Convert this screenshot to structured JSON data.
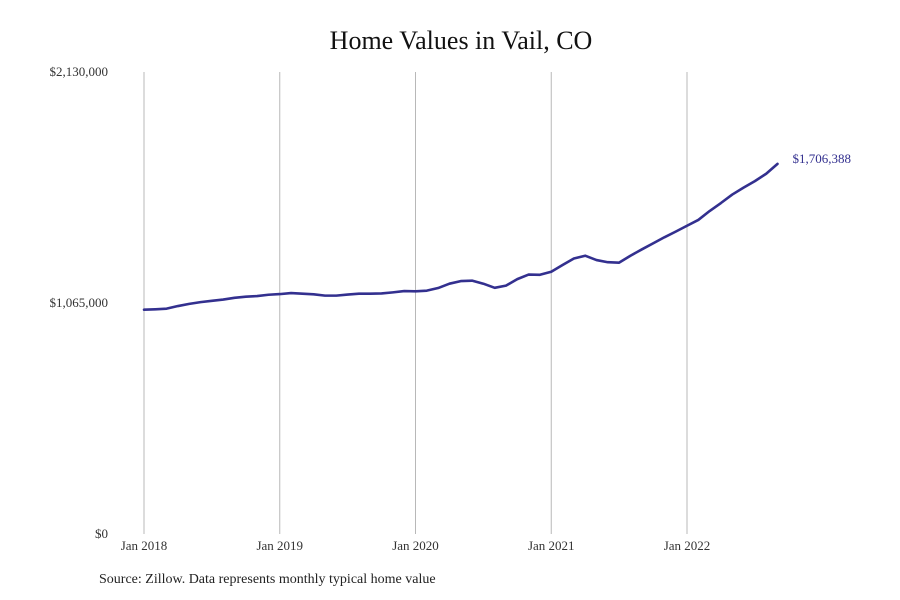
{
  "chart_data": {
    "type": "line",
    "title": "Home Values in Vail, CO",
    "xlabel": "",
    "ylabel": "",
    "source": "Source: Zillow. Data represents monthly typical home value",
    "ylim": [
      0,
      2130000
    ],
    "y_ticks": [
      0,
      1065000,
      2130000
    ],
    "y_tick_labels": [
      "$0",
      "$1,065,000",
      "$2,130,000"
    ],
    "x_tick_labels": [
      "Jan 2018",
      "Jan 2019",
      "Jan 2020",
      "Jan 2021",
      "Jan 2022"
    ],
    "x_tick_dates": [
      "2018-01",
      "2019-01",
      "2020-01",
      "2021-01",
      "2022-01"
    ],
    "x_grid": true,
    "line_color": "#33308f",
    "end_label": "$1,706,388",
    "series": [
      {
        "x": [
          "2018-01",
          "2018-02",
          "2018-03",
          "2018-04",
          "2018-05",
          "2018-06",
          "2018-07",
          "2018-08",
          "2018-09",
          "2018-10",
          "2018-11",
          "2018-12",
          "2019-01",
          "2019-02",
          "2019-03",
          "2019-04",
          "2019-05",
          "2019-06",
          "2019-07",
          "2019-08",
          "2019-09",
          "2019-10",
          "2019-11",
          "2019-12",
          "2020-01",
          "2020-02",
          "2020-03",
          "2020-04",
          "2020-05",
          "2020-06",
          "2020-07",
          "2020-08",
          "2020-09",
          "2020-10",
          "2020-11",
          "2020-12",
          "2021-01",
          "2021-02",
          "2021-03",
          "2021-04",
          "2021-05",
          "2021-06",
          "2021-07",
          "2021-08",
          "2021-09",
          "2021-10",
          "2021-11",
          "2021-12",
          "2022-01",
          "2022-02",
          "2022-03",
          "2022-04",
          "2022-05",
          "2022-06",
          "2022-07",
          "2022-08",
          "2022-09"
        ],
        "values": [
          1034000,
          1036000,
          1039000,
          1051000,
          1061000,
          1069000,
          1075000,
          1081000,
          1089000,
          1094000,
          1097000,
          1103000,
          1106000,
          1111000,
          1108000,
          1105000,
          1099000,
          1099000,
          1104000,
          1108000,
          1108000,
          1109000,
          1114000,
          1120000,
          1119000,
          1122000,
          1134000,
          1154000,
          1166000,
          1168000,
          1154000,
          1135000,
          1145000,
          1175000,
          1196000,
          1195000,
          1209000,
          1240000,
          1270000,
          1283000,
          1263000,
          1253000,
          1251000,
          1283000,
          1312000,
          1340000,
          1368000,
          1394000,
          1421000,
          1448000,
          1489000,
          1526000,
          1565000,
          1597000,
          1627000,
          1661000,
          1706388
        ]
      }
    ]
  }
}
